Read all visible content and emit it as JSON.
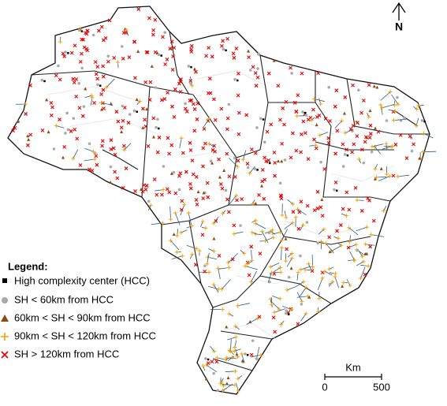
{
  "north_label": "N",
  "legend": {
    "title": "Legend:",
    "items": [
      "High complexity center (HCC)",
      "SH < 60km from HCC",
      "60km < SH < 90km from HCC",
      "90km < SH < 120km from HCC",
      "SH > 120km from HCC"
    ]
  },
  "scale_bar": {
    "unit": "Km",
    "ticks": [
      0,
      500
    ]
  }
}
